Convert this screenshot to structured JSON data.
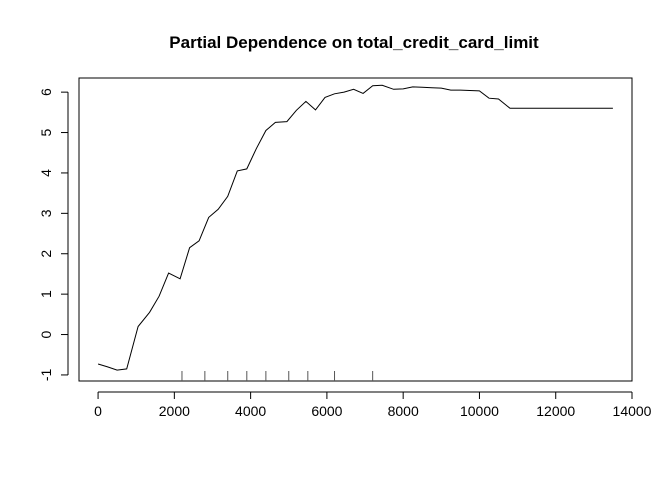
{
  "chart_data": {
    "type": "line",
    "title": "Partial Dependence on total_credit_card_limit",
    "xlabel": "",
    "ylabel": "",
    "xlim": [
      -500,
      14000
    ],
    "ylim": [
      -1.15,
      6.35
    ],
    "x_ticks": [
      0,
      2000,
      4000,
      6000,
      8000,
      10000,
      12000,
      14000
    ],
    "y_ticks": [
      -1,
      0,
      1,
      2,
      3,
      4,
      5,
      6
    ],
    "grid": false,
    "legend": "none",
    "line_color": "#000000",
    "series": [
      {
        "x": [
          0,
          250,
          500,
          750,
          1050,
          1350,
          1600,
          1850,
          2150,
          2400,
          2650,
          2900,
          3150,
          3400,
          3650,
          3900,
          4150,
          4400,
          4650,
          4950,
          5200,
          5450,
          5700,
          5950,
          6200,
          6450,
          6700,
          6950,
          7200,
          7450,
          7750,
          8000,
          8250,
          8500,
          8750,
          9000,
          9250,
          9500,
          9750,
          10000,
          10250,
          10500,
          10800,
          11000,
          11500,
          12000,
          12500,
          13000,
          13500
        ],
        "y": [
          -0.73,
          -0.8,
          -0.88,
          -0.85,
          0.2,
          0.55,
          0.95,
          1.52,
          1.38,
          2.15,
          2.32,
          2.9,
          3.1,
          3.42,
          4.05,
          4.1,
          4.6,
          5.05,
          5.25,
          5.27,
          5.55,
          5.77,
          5.56,
          5.87,
          5.96,
          6.0,
          6.07,
          5.97,
          6.16,
          6.17,
          6.07,
          6.08,
          6.13,
          6.12,
          6.11,
          6.1,
          6.05,
          6.05,
          6.04,
          6.03,
          5.85,
          5.83,
          5.6,
          5.6,
          5.6,
          5.6,
          5.6,
          5.6,
          5.6
        ]
      }
    ],
    "rug": [
      2200,
      2800,
      3400,
      3900,
      4400,
      5000,
      5500,
      6200,
      7200
    ]
  }
}
